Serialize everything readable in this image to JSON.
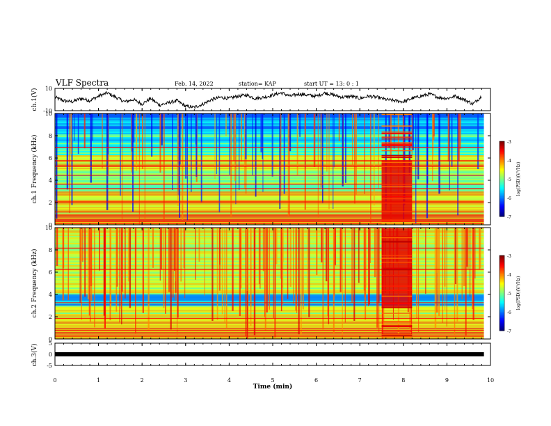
{
  "header": {
    "title": "VLF Spectra",
    "date": "Feb. 14, 2022",
    "station": "station= KAP",
    "start": "start UT =  13: 0 : 1"
  },
  "chart_data": [
    {
      "id": "ch1-waveform",
      "type": "line",
      "ylabel": "ch.1(V)",
      "ylim": [
        -10,
        10
      ],
      "y_ticks": [
        "10",
        "-10"
      ],
      "xlim": [
        0,
        10
      ],
      "series": [
        {
          "x": [
            0,
            0.2,
            0.4,
            0.6,
            0.8,
            1.0,
            1.2,
            1.4,
            1.6,
            1.8,
            2.0,
            2.2,
            2.4,
            2.6,
            2.8,
            3.0,
            3.2,
            3.4,
            3.6,
            3.8,
            4.0,
            4.2,
            4.4,
            4.6,
            4.8,
            5.0,
            5.2,
            5.4,
            5.6,
            5.8,
            6.0,
            6.2,
            6.4,
            6.6,
            6.8,
            7.0,
            7.2,
            7.4,
            7.6,
            7.8,
            8.0,
            8.2,
            8.4,
            8.6,
            8.8,
            9.0,
            9.2,
            9.4,
            9.6,
            9.8
          ],
          "y": [
            2,
            -1,
            -2,
            1,
            -1,
            3,
            6,
            2,
            -2,
            0,
            -4,
            1,
            -5,
            -3,
            -1,
            -6,
            -7,
            -4,
            0,
            2,
            1,
            3,
            4,
            1,
            2,
            4,
            6,
            3,
            5,
            4,
            3,
            6,
            4,
            2,
            3,
            1,
            3,
            2,
            0,
            -1,
            -2,
            1,
            3,
            5,
            2,
            1,
            3,
            0,
            -4,
            3
          ],
          "color": "#000000"
        }
      ]
    },
    {
      "id": "ch1-spectrogram",
      "type": "heatmap",
      "ylabel": "ch.1\nFrequency (kHz)",
      "ylim": [
        0,
        10
      ],
      "y_ticks": [
        "0",
        "2",
        "4",
        "6",
        "8",
        "10"
      ],
      "xlim": [
        0,
        10
      ],
      "burst_time_min": [
        7.5,
        8.2
      ],
      "data_end_min": 9.85,
      "colorbar": {
        "label": "log(PSD)(V²/Hz)",
        "range": [
          -7,
          -3
        ],
        "ticks": [
          "-3",
          "-4",
          "-5",
          "-6",
          "-7"
        ],
        "colormap": "jet"
      }
    },
    {
      "id": "ch2-spectrogram",
      "type": "heatmap",
      "ylabel": "ch.2\nFrequency (kHz)",
      "ylim": [
        0,
        10
      ],
      "y_ticks": [
        "0",
        "2",
        "4",
        "6",
        "8",
        "10"
      ],
      "xlim": [
        0,
        10
      ],
      "burst_time_min": [
        7.5,
        8.2
      ],
      "data_end_min": 9.85,
      "colorbar": {
        "label": "log(PSD)(V²/Hz)",
        "range": [
          -7,
          -3
        ],
        "ticks": [
          "-3",
          "-4",
          "-5",
          "-6",
          "-7"
        ],
        "colormap": "jet"
      }
    },
    {
      "id": "ch3-waveform",
      "type": "line",
      "ylabel": "ch.3(V)",
      "ylim": [
        -5,
        5
      ],
      "y_ticks": [
        "5",
        "0",
        "-5"
      ],
      "xlim": [
        0,
        10
      ],
      "series": [
        {
          "x": [
            0,
            9.85
          ],
          "y": [
            0,
            0
          ],
          "color": "#000000"
        }
      ]
    }
  ],
  "x_axis": {
    "label": "Time (min)",
    "ticks": [
      "0",
      "1",
      "2",
      "3",
      "4",
      "5",
      "6",
      "7",
      "8",
      "9",
      "10"
    ]
  }
}
